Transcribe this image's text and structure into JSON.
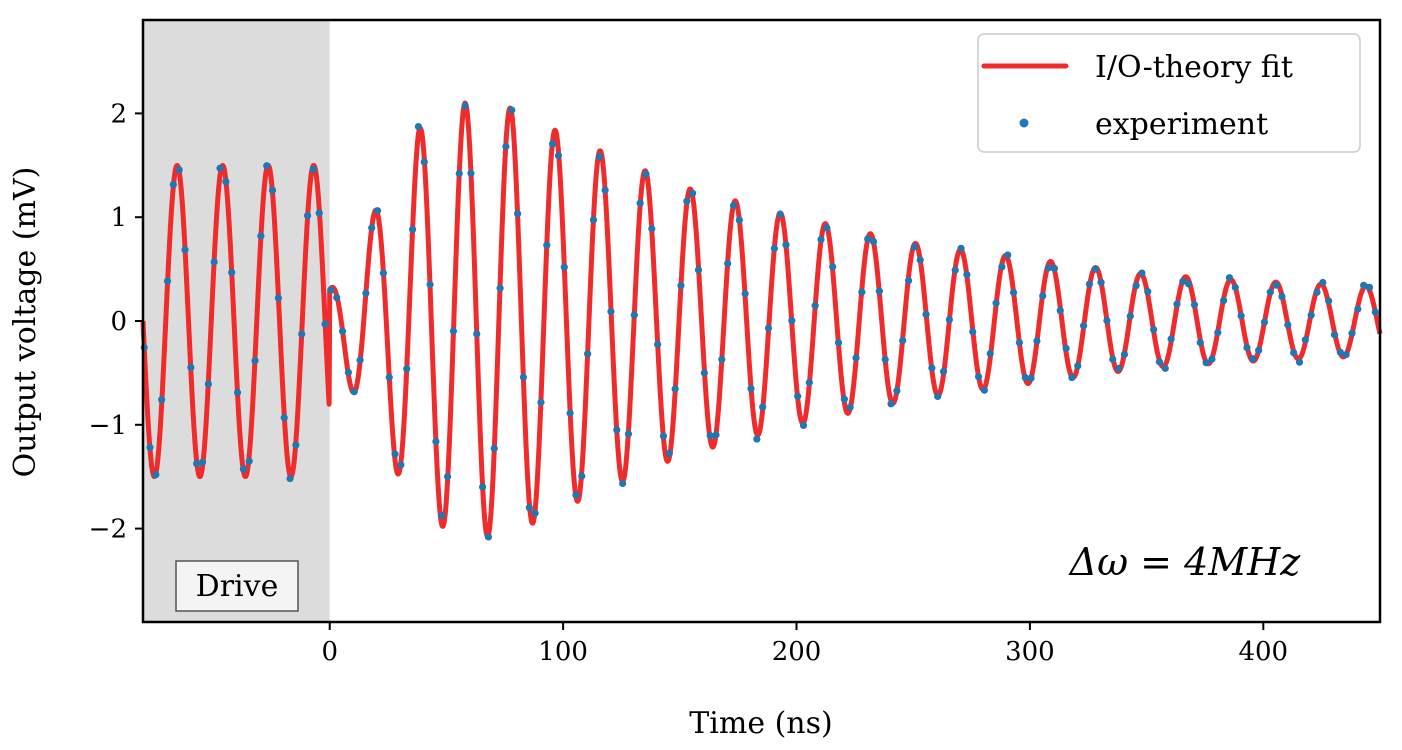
{
  "chart_data": {
    "type": "line",
    "title": "",
    "xlabel": "Time (ns)",
    "ylabel": "Output voltage (mV)",
    "xlim": [
      -80,
      450
    ],
    "ylim": [
      -2.9,
      2.9
    ],
    "x_ticks": [
      0,
      100,
      200,
      300,
      400
    ],
    "x_tick_labels": [
      "0",
      "100",
      "200",
      "300",
      "400"
    ],
    "y_ticks": [
      -2,
      -1,
      0,
      1,
      2
    ],
    "y_tick_labels": [
      "−2",
      "−1",
      "0",
      "1",
      "2"
    ],
    "grid": false,
    "legend_position": "top-right",
    "shaded_region": {
      "x_range": [
        -80,
        0
      ],
      "label": "Drive",
      "color": "#dcdcdc"
    },
    "annotation": "Δω = 4MHz",
    "colors": {
      "fit": "#ef2b2b",
      "experiment": "#1f77b4",
      "drive": "#dcdcdc"
    },
    "series": [
      {
        "name": "I/O-theory fit",
        "kind": "line",
        "model": {
          "drive_segment": {
            "x_range": [
              -80,
              0
            ],
            "amplitude": 1.5,
            "period_ns": 19.5,
            "phase_crossing_ns": -80
          },
          "free_segment": {
            "x_range": [
              0,
              450
            ],
            "envelope_peaks": [
              [
                0,
                0.3
              ],
              [
                18,
                1.0
              ],
              [
                38,
                1.85
              ],
              [
                58,
                2.1
              ],
              [
                78,
                2.05
              ],
              [
                100,
                1.8
              ],
              [
                150,
                1.3
              ],
              [
                200,
                1.0
              ],
              [
                250,
                0.75
              ],
              [
                300,
                0.6
              ],
              [
                350,
                0.45
              ],
              [
                400,
                0.38
              ],
              [
                450,
                0.33
              ]
            ],
            "period_ns": 19.3,
            "peak_ns": 58
          }
        }
      },
      {
        "name": "experiment",
        "kind": "scatter",
        "sample_spacing_ns": 2.5,
        "scatter_noise_mV": 0.06
      }
    ]
  }
}
